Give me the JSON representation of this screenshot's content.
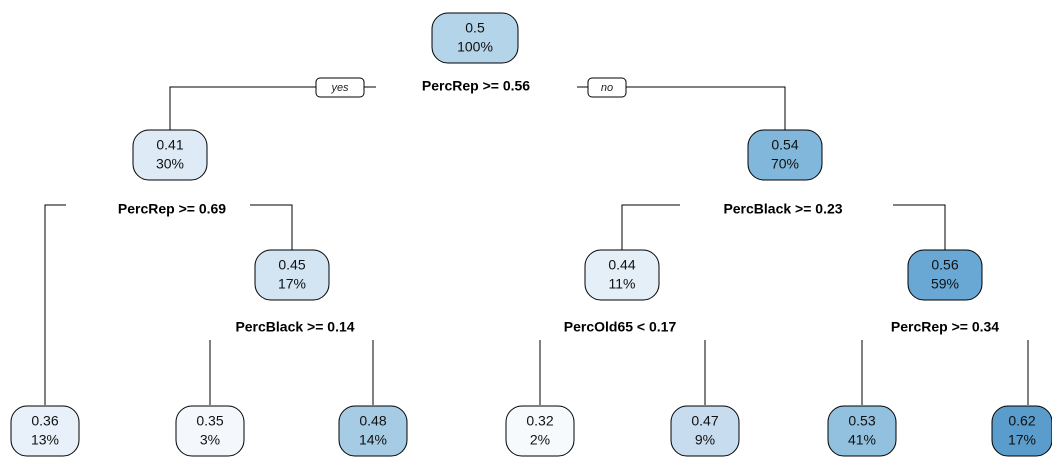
{
  "nodes": [
    {
      "value": "0.5",
      "percent": "100%",
      "color": "#b4d4e9"
    },
    {
      "value": "0.41",
      "percent": "30%",
      "color": "#deebf6"
    },
    {
      "value": "0.54",
      "percent": "70%",
      "color": "#80b7da"
    },
    {
      "value": "0.45",
      "percent": "17%",
      "color": "#d3e4f2"
    },
    {
      "value": "0.44",
      "percent": "11%",
      "color": "#e4eff8"
    },
    {
      "value": "0.56",
      "percent": "59%",
      "color": "#69a8d4"
    },
    {
      "value": "0.36",
      "percent": "13%",
      "color": "#e8f1f9"
    },
    {
      "value": "0.35",
      "percent": "3%",
      "color": "#f4f8fc"
    },
    {
      "value": "0.48",
      "percent": "14%",
      "color": "#a6cbe4"
    },
    {
      "value": "0.32",
      "percent": "2%",
      "color": "#f7fafd"
    },
    {
      "value": "0.47",
      "percent": "9%",
      "color": "#c7ddef"
    },
    {
      "value": "0.53",
      "percent": "41%",
      "color": "#92c1df"
    },
    {
      "value": "0.62",
      "percent": "17%",
      "color": "#5a9ccc"
    }
  ],
  "splits": [
    {
      "label": "PercRep >= 0.56"
    },
    {
      "label": "PercRep >= 0.69"
    },
    {
      "label": "PercBlack >= 0.23"
    },
    {
      "label": "PercBlack >= 0.14"
    },
    {
      "label": "PercOld65 < 0.17"
    },
    {
      "label": "PercRep >= 0.34"
    }
  ],
  "branch_labels": {
    "yes": "yes",
    "no": "no"
  }
}
